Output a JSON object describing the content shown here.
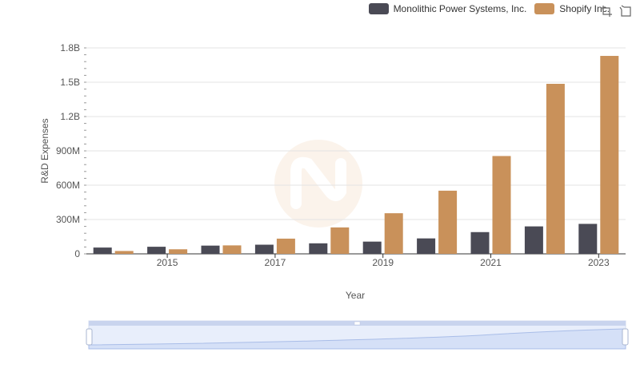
{
  "legend": {
    "items": [
      {
        "label": "Monolithic Power Systems, Inc.",
        "color": "#4a4a55"
      },
      {
        "label": "Shopify Inc.",
        "color": "#c9915a"
      }
    ]
  },
  "toolbox": {
    "zoom_icon": "zoom-icon",
    "restore_icon": "restore-icon"
  },
  "chart_data": {
    "type": "bar",
    "title": "",
    "xlabel": "Year",
    "ylabel": "R&D Expenses",
    "categories": [
      "2014",
      "2015",
      "2016",
      "2017",
      "2018",
      "2019",
      "2020",
      "2021",
      "2022",
      "2023"
    ],
    "x_tick_labels": [
      "2015",
      "2017",
      "2019",
      "2021",
      "2023"
    ],
    "y_tick_labels": [
      "0",
      "300M",
      "600M",
      "900M",
      "1.2B",
      "1.5B",
      "1.8B"
    ],
    "ylim": [
      0,
      1800000000
    ],
    "series": [
      {
        "name": "Monolithic Power Systems, Inc.",
        "color": "#4a4a55",
        "values": [
          55000000,
          62000000,
          72000000,
          80000000,
          92000000,
          107000000,
          135000000,
          190000000,
          240000000,
          262000000
        ]
      },
      {
        "name": "Shopify Inc.",
        "color": "#c9915a",
        "values": [
          25000000,
          40000000,
          74000000,
          133000000,
          231000000,
          355000000,
          552000000,
          855000000,
          1486000000,
          1730000000
        ]
      }
    ],
    "grid": true,
    "legend_position": "top-right"
  }
}
